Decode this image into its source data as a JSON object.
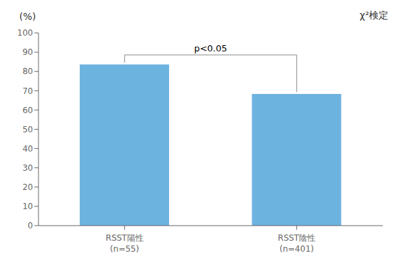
{
  "chart_data": {
    "type": "bar",
    "categories": [
      "RSST陽性\n(n=55)",
      "RSST陰性\n(n=401)"
    ],
    "values": [
      83.6,
      68.3
    ],
    "color": "#6db3e0",
    "ylabel": "(%)",
    "ylim": [
      0,
      100
    ],
    "yticks": [
      0,
      10,
      20,
      30,
      40,
      50,
      60,
      70,
      80,
      90,
      100
    ],
    "grid": false,
    "annotations": [
      {
        "text": "χ²検定"
      },
      {
        "text": "p<0.05",
        "between": [
          "RSST陽性\n(n=55)",
          "RSST陰性\n(n=401)"
        ]
      }
    ]
  }
}
